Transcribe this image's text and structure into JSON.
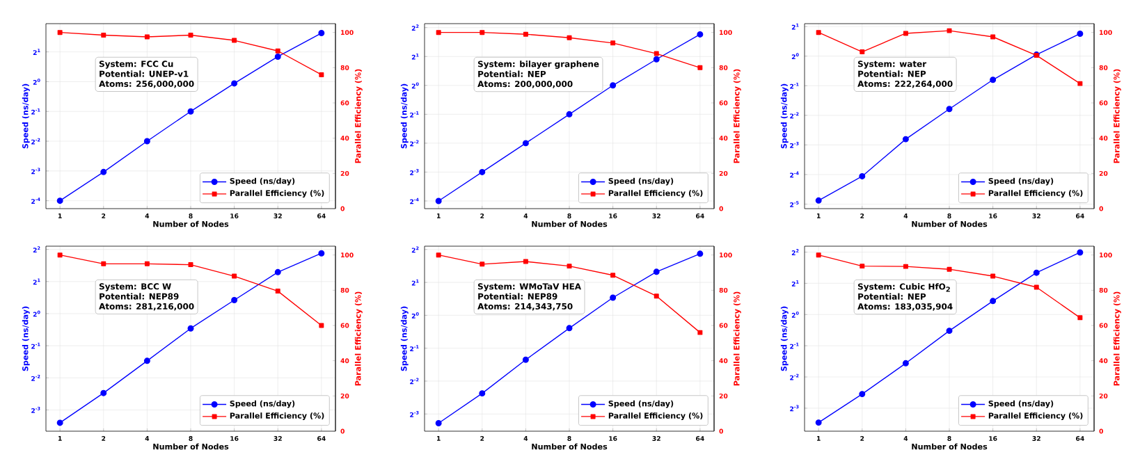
{
  "chart_data": [
    {
      "type": "line",
      "xlabel": "Number of Nodes",
      "ylabel": "Speed (ns/day)",
      "y2label": "Parallel Efficiency (%)",
      "log": "xy",
      "grid": true,
      "legend": "bottom right",
      "x": [
        1,
        2,
        4,
        8,
        16,
        32,
        64
      ],
      "xlim": [
        0.8,
        80
      ],
      "xticks": [
        1,
        2,
        4,
        8,
        16,
        32,
        64
      ],
      "ylim": [
        0.052,
        3.86
      ],
      "yticks": [
        {
          "value": 0.0625,
          "label": "2$^{-4}$"
        },
        {
          "value": 0.125,
          "label": "2$^{-3}$"
        },
        {
          "value": 0.25,
          "label": "2$^{-2}$"
        },
        {
          "value": 0.5,
          "label": "2$^{-1}$"
        },
        {
          "value": 1,
          "label": "2$^{0}$"
        },
        {
          "value": 2,
          "label": "2$^{1}$"
        }
      ],
      "y2lim": [
        0,
        105
      ],
      "y2ticks": [
        0,
        20,
        40,
        60,
        80,
        100
      ],
      "series": [
        {
          "name": "Speed (ns/day)",
          "color": "#0000ff",
          "marker": "circle",
          "values": [
            0.0625,
            0.122,
            0.25,
            0.5,
            0.96,
            1.79,
            3.1
          ]
        },
        {
          "name": "Parallel Efficiency (%)",
          "color": "#ff0000",
          "marker": "square",
          "axis": "y2",
          "values": [
            100,
            98.5,
            97.5,
            98.5,
            95.5,
            89.5,
            76
          ]
        }
      ],
      "annotations": [
        "System: FCC Cu",
        "Potential: UNEP-v1",
        "Atoms: 256,000,000"
      ]
    },
    {
      "type": "line",
      "xlabel": "Number of Nodes",
      "ylabel": "Speed (ns/day)",
      "y2label": "Parallel Efficiency (%)",
      "log": "xy",
      "grid": true,
      "legend": "bottom right",
      "x": [
        1,
        2,
        4,
        8,
        16,
        32,
        64
      ],
      "xlim": [
        0.8,
        80
      ],
      "xticks": [
        1,
        2,
        4,
        8,
        16,
        32,
        64
      ],
      "ylim": [
        0.052,
        4.4
      ],
      "yticks": [
        {
          "value": 0.0625,
          "label": "2$^{-4}$"
        },
        {
          "value": 0.125,
          "label": "2$^{-3}$"
        },
        {
          "value": 0.25,
          "label": "2$^{-2}$"
        },
        {
          "value": 0.5,
          "label": "2$^{-1}$"
        },
        {
          "value": 1,
          "label": "2$^{0}$"
        },
        {
          "value": 2,
          "label": "2$^{1}$"
        },
        {
          "value": 4,
          "label": "2$^{2}$"
        }
      ],
      "y2lim": [
        0,
        105
      ],
      "y2ticks": [
        0,
        20,
        40,
        60,
        80,
        100
      ],
      "series": [
        {
          "name": "Speed (ns/day)",
          "color": "#0000ff",
          "marker": "circle",
          "values": [
            0.0625,
            0.125,
            0.25,
            0.5,
            1.0,
            1.87,
            3.4
          ]
        },
        {
          "name": "Parallel Efficiency (%)",
          "color": "#ff0000",
          "marker": "square",
          "axis": "y2",
          "values": [
            100,
            100,
            99,
            97,
            94,
            88,
            80
          ]
        }
      ],
      "annotations": [
        "System: bilayer graphene",
        "Potential: NEP",
        "Atoms: 200,000,000"
      ]
    },
    {
      "type": "line",
      "xlabel": "Number of Nodes",
      "ylabel": "Speed (ns/day)",
      "y2label": "Parallel Efficiency (%)",
      "log": "xy",
      "grid": true,
      "legend": "bottom right",
      "x": [
        1,
        2,
        4,
        8,
        16,
        32,
        64
      ],
      "xlim": [
        0.8,
        80
      ],
      "xticks": [
        1,
        2,
        4,
        8,
        16,
        32,
        64
      ],
      "ylim": [
        0.0281,
        2.14
      ],
      "yticks": [
        {
          "value": 0.03125,
          "label": "2$^{-5}$"
        },
        {
          "value": 0.0625,
          "label": "2$^{-4}$"
        },
        {
          "value": 0.125,
          "label": "2$^{-3}$"
        },
        {
          "value": 0.25,
          "label": "2$^{-2}$"
        },
        {
          "value": 0.5,
          "label": "2$^{-1}$"
        },
        {
          "value": 1,
          "label": "2$^{0}$"
        },
        {
          "value": 2,
          "label": "2$^{1}$"
        }
      ],
      "y2lim": [
        0,
        105
      ],
      "y2ticks": [
        0,
        20,
        40,
        60,
        80,
        100
      ],
      "series": [
        {
          "name": "Speed (ns/day)",
          "color": "#0000ff",
          "marker": "circle",
          "values": [
            0.034,
            0.06,
            0.143,
            0.29,
            0.574,
            1.035,
            1.69
          ]
        },
        {
          "name": "Parallel Efficiency (%)",
          "color": "#ff0000",
          "marker": "square",
          "axis": "y2",
          "values": [
            100,
            89,
            99.5,
            101,
            97.5,
            87,
            71
          ]
        }
      ],
      "annotations": [
        "System: water",
        "Potential: NEP",
        "Atoms: 222,264,000"
      ]
    },
    {
      "type": "line",
      "xlabel": "Number of Nodes",
      "ylabel": "Speed (ns/day)",
      "y2label": "Parallel Efficiency (%)",
      "log": "xy",
      "grid": true,
      "legend": "bottom right",
      "x": [
        1,
        2,
        4,
        8,
        16,
        32,
        64
      ],
      "xlim": [
        0.8,
        80
      ],
      "xticks": [
        1,
        2,
        4,
        8,
        16,
        32,
        64
      ],
      "ylim": [
        0.079,
        4.29
      ],
      "yticks": [
        {
          "value": 0.125,
          "label": "2$^{-3}$"
        },
        {
          "value": 0.25,
          "label": "2$^{-2}$"
        },
        {
          "value": 0.5,
          "label": "2$^{-1}$"
        },
        {
          "value": 1,
          "label": "2$^{0}$"
        },
        {
          "value": 2,
          "label": "2$^{1}$"
        },
        {
          "value": 4,
          "label": "2$^{2}$"
        }
      ],
      "y2lim": [
        0,
        105
      ],
      "y2ticks": [
        0,
        20,
        40,
        60,
        80,
        100
      ],
      "series": [
        {
          "name": "Speed (ns/day)",
          "color": "#0000ff",
          "marker": "circle",
          "values": [
            0.0947,
            0.18,
            0.361,
            0.727,
            1.34,
            2.45,
            3.68
          ]
        },
        {
          "name": "Parallel Efficiency (%)",
          "color": "#ff0000",
          "marker": "square",
          "axis": "y2",
          "values": [
            100,
            95,
            95,
            94.5,
            88,
            79.5,
            60
          ]
        }
      ],
      "annotations": [
        "System: BCC W",
        "Potential: NEP89",
        "Atoms: 281,216,000"
      ]
    },
    {
      "type": "line",
      "xlabel": "Number of Nodes",
      "ylabel": "Speed (ns/day)",
      "y2label": "Parallel Efficiency (%)",
      "log": "xy",
      "grid": true,
      "legend": "bottom right",
      "x": [
        1,
        2,
        4,
        8,
        16,
        32,
        64
      ],
      "xlim": [
        0.8,
        80
      ],
      "xticks": [
        1,
        2,
        4,
        8,
        16,
        32,
        64
      ],
      "ylim": [
        0.087,
        4.29
      ],
      "yticks": [
        {
          "value": 0.125,
          "label": "2$^{-3}$"
        },
        {
          "value": 0.25,
          "label": "2$^{-2}$"
        },
        {
          "value": 0.5,
          "label": "2$^{-1}$"
        },
        {
          "value": 1,
          "label": "2$^{0}$"
        },
        {
          "value": 2,
          "label": "2$^{1}$"
        },
        {
          "value": 4,
          "label": "2$^{2}$"
        }
      ],
      "y2lim": [
        0,
        105
      ],
      "y2ticks": [
        0,
        20,
        40,
        60,
        80,
        100
      ],
      "series": [
        {
          "name": "Speed (ns/day)",
          "color": "#0000ff",
          "marker": "circle",
          "values": [
            0.103,
            0.193,
            0.392,
            0.763,
            1.45,
            2.5,
            3.66
          ]
        },
        {
          "name": "Parallel Efficiency (%)",
          "color": "#ff0000",
          "marker": "square",
          "axis": "y2",
          "values": [
            100,
            94.8,
            96.3,
            93.7,
            88.5,
            76.7,
            56
          ]
        }
      ],
      "annotations": [
        "System: WMoTaV HEA",
        "Potential: NEP89",
        "Atoms: 214,343,750"
      ]
    },
    {
      "type": "line",
      "xlabel": "Number of Nodes",
      "ylabel": "Speed (ns/day)",
      "y2label": "Parallel Efficiency (%)",
      "log": "xy",
      "grid": true,
      "legend": "bottom right",
      "x": [
        1,
        2,
        4,
        8,
        16,
        32,
        64
      ],
      "xlim": [
        0.8,
        80
      ],
      "xticks": [
        1,
        2,
        4,
        8,
        16,
        32,
        64
      ],
      "ylim": [
        0.075,
        4.56
      ],
      "yticks": [
        {
          "value": 0.125,
          "label": "2$^{-3}$"
        },
        {
          "value": 0.25,
          "label": "2$^{-2}$"
        },
        {
          "value": 0.5,
          "label": "2$^{-1}$"
        },
        {
          "value": 1,
          "label": "2$^{0}$"
        },
        {
          "value": 2,
          "label": "2$^{1}$"
        },
        {
          "value": 4,
          "label": "2$^{2}$"
        }
      ],
      "y2lim": [
        0,
        105
      ],
      "y2ticks": [
        0,
        20,
        40,
        60,
        80,
        100
      ],
      "series": [
        {
          "name": "Speed (ns/day)",
          "color": "#0000ff",
          "marker": "circle",
          "values": [
            0.0908,
            0.171,
            0.339,
            0.697,
            1.35,
            2.53,
            3.97
          ]
        },
        {
          "name": "Parallel Efficiency (%)",
          "color": "#ff0000",
          "marker": "square",
          "axis": "y2",
          "values": [
            100,
            93.7,
            93.5,
            91.9,
            88,
            81.7,
            64.4
          ]
        }
      ],
      "annotations": [
        "System: Cubic HfO$_{2}$",
        "Potential: NEP",
        "Atoms: 183,035,904"
      ]
    }
  ]
}
